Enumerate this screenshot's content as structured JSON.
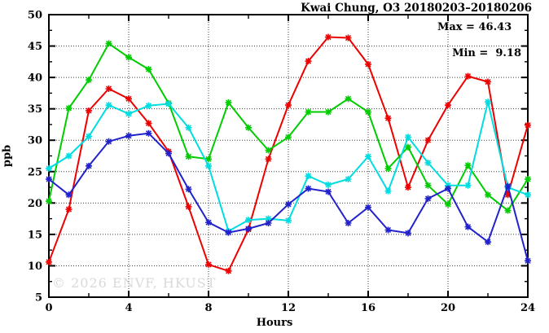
{
  "title": "Kwai Chung, O3 20180203–20180206",
  "legend": {
    "max": "Max = 46.43",
    "min": "Min =  9.18"
  },
  "watermark": "© 2026 ENVF, HKUST",
  "chart_data": {
    "type": "line",
    "title": "Kwai Chung, O3 20180203–20180206",
    "xlabel": "Hours",
    "ylabel": "ppb",
    "xlim": [
      0,
      24
    ],
    "ylim": [
      5,
      50
    ],
    "x_major_ticks": [
      0,
      4,
      8,
      12,
      16,
      20,
      24
    ],
    "x_minor_ticks": [
      2,
      6,
      10,
      14,
      18,
      22
    ],
    "y_major_ticks": [
      5,
      10,
      15,
      20,
      25,
      30,
      35,
      40,
      45,
      50
    ],
    "y_minor_ticks": [
      7.5,
      12.5,
      17.5,
      22.5,
      27.5,
      32.5,
      37.5,
      42.5,
      47.5
    ],
    "grid": {
      "x_lines": [
        4,
        8,
        12,
        16,
        20
      ],
      "y_lines": [
        10,
        15,
        20,
        25,
        30,
        35,
        40,
        45
      ]
    },
    "stats": {
      "max": 46.43,
      "min": 9.18
    },
    "legend_position": "top-right",
    "x": [
      0,
      1,
      2,
      3,
      4,
      5,
      6,
      7,
      8,
      9,
      10,
      11,
      12,
      13,
      14,
      15,
      16,
      17,
      18,
      19,
      20,
      21,
      22,
      23,
      24
    ],
    "series": [
      {
        "name": "series-red",
        "color": "#ee0000",
        "values": [
          10.6,
          19.0,
          34.7,
          38.2,
          36.6,
          32.7,
          28.2,
          19.4,
          10.2,
          9.18,
          15.8,
          27.0,
          35.6,
          42.6,
          46.43,
          46.3,
          42.1,
          33.5,
          22.5,
          30.0,
          35.6,
          40.2,
          39.3,
          21.3,
          32.4
        ]
      },
      {
        "name": "series-green",
        "color": "#00cc00",
        "values": [
          20.3,
          35.1,
          39.6,
          45.4,
          43.2,
          41.3,
          35.9,
          27.4,
          27.0,
          36.0,
          32.0,
          28.4,
          30.5,
          34.5,
          34.5,
          36.6,
          34.5,
          25.5,
          28.9,
          22.8,
          19.8,
          26.0,
          21.3,
          18.8,
          23.8
        ]
      },
      {
        "name": "series-cyan",
        "color": "#00dde0",
        "values": [
          25.5,
          27.5,
          30.6,
          35.6,
          34.2,
          35.5,
          35.8,
          32.0,
          25.9,
          15.5,
          17.3,
          17.5,
          17.2,
          24.3,
          22.9,
          23.8,
          27.4,
          21.9,
          30.5,
          26.4,
          22.8,
          22.8,
          36.1,
          22.5,
          21.3
        ]
      },
      {
        "name": "series-blue",
        "color": "#2222cc",
        "values": [
          23.8,
          21.3,
          25.9,
          29.8,
          30.7,
          31.1,
          27.9,
          22.2,
          16.9,
          15.3,
          15.9,
          16.8,
          19.8,
          22.3,
          21.8,
          16.8,
          19.3,
          15.7,
          15.2,
          20.7,
          22.3,
          16.2,
          13.8,
          22.7,
          10.8
        ]
      }
    ]
  }
}
